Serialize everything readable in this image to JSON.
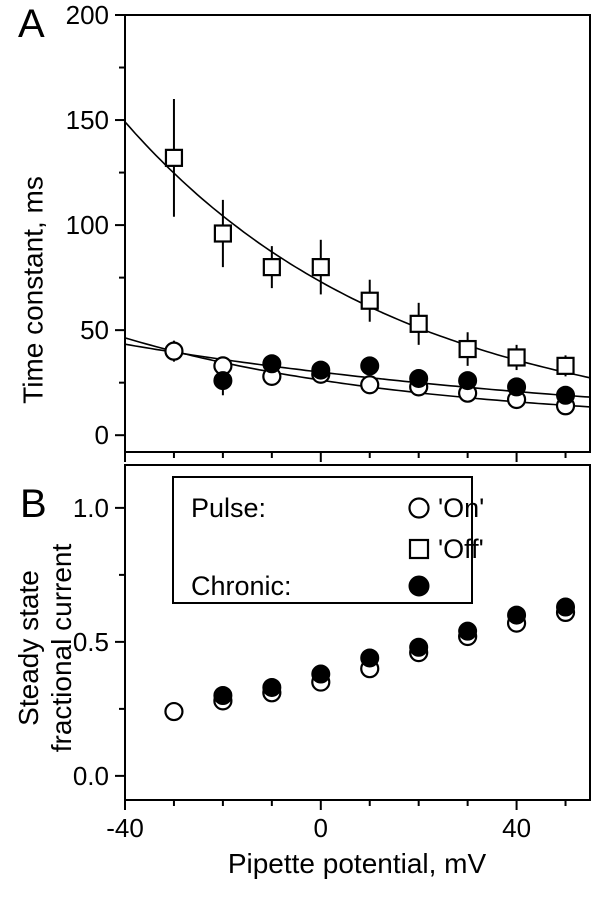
{
  "figure": {
    "panel_a_label": "A",
    "panel_b_label": "B",
    "x_axis_title": "Pipette potential, mV",
    "panel_a_y_title": "Time constant, ms",
    "panel_b_y_title_line1": "Steady state",
    "panel_b_y_title_line2": "fractional current"
  },
  "legend": {
    "pulse_label": "Pulse:",
    "on_label": "'On'",
    "off_label": "'Off'",
    "chronic_label": "Chronic:"
  },
  "chart_data": [
    {
      "type": "scatter",
      "panel": "A",
      "title": "",
      "xlabel": "Pipette potential, mV",
      "ylabel": "Time constant, ms",
      "xlim": [
        -40,
        55
      ],
      "ylim": [
        -8,
        200
      ],
      "x_major_ticks": [
        -40,
        0,
        40
      ],
      "x_tick_labels": [
        "-40",
        "0",
        "40"
      ],
      "x_minor_step": 10,
      "show_x_tick_labels": false,
      "y_major_ticks": [
        0,
        50,
        100,
        150,
        200
      ],
      "y_tick_labels": [
        "0",
        "50",
        "100",
        "150",
        "200"
      ],
      "y_minor_step": 25,
      "grid": false,
      "series": [
        {
          "name": "Pulse Off",
          "marker": "square-open",
          "x": [
            -30,
            -20,
            -10,
            0,
            10,
            20,
            30,
            40,
            50
          ],
          "y": [
            132,
            96,
            80,
            80,
            64,
            53,
            41,
            37,
            33
          ],
          "yerr": [
            28,
            16,
            10,
            13,
            10,
            10,
            8,
            6,
            5
          ],
          "fit": {
            "type": "exponential",
            "a": 73,
            "k": 56,
            "c": 0
          }
        },
        {
          "name": "Pulse On",
          "marker": "circle-open",
          "x": [
            -30,
            -20,
            -10,
            0,
            10,
            20,
            30,
            40,
            50
          ],
          "y": [
            40,
            33,
            28,
            29,
            24,
            23,
            20,
            17,
            14
          ],
          "yerr": [
            5,
            4,
            3,
            3,
            3,
            2,
            2,
            2,
            2
          ],
          "fit": {
            "type": "exponential",
            "a": 21.2,
            "k": 60,
            "c": 5
          }
        },
        {
          "name": "Chronic",
          "marker": "circle-filled",
          "x": [
            -20,
            -10,
            0,
            10,
            20,
            30,
            40,
            50
          ],
          "y": [
            26,
            34,
            31,
            33,
            27,
            26,
            23,
            19
          ],
          "yerr": [
            7,
            3,
            2,
            3,
            2,
            2,
            2,
            2
          ],
          "fit": {
            "type": "exponential",
            "a": 30,
            "k": 109,
            "c": 0
          }
        }
      ]
    },
    {
      "type": "scatter",
      "panel": "B",
      "title": "",
      "xlabel": "Pipette potential, mV",
      "ylabel": "Steady state fractional current",
      "xlim": [
        -40,
        55
      ],
      "ylim": [
        -0.09,
        1.16
      ],
      "x_major_ticks": [
        -40,
        0,
        40
      ],
      "x_tick_labels": [
        "-40",
        "0",
        "40"
      ],
      "x_minor_step": 10,
      "show_x_tick_labels": true,
      "y_major_ticks": [
        0,
        0.5,
        1
      ],
      "y_tick_labels": [
        "0.0",
        "0.5",
        "1.0"
      ],
      "y_minor_step": 0.25,
      "grid": false,
      "series": [
        {
          "name": "Pulse On",
          "marker": "circle-open",
          "x": [
            -30,
            -20,
            -10,
            0,
            10,
            20,
            30,
            40,
            50
          ],
          "y": [
            0.24,
            0.28,
            0.31,
            0.35,
            0.4,
            0.46,
            0.52,
            0.57,
            0.61
          ],
          "yerr": [],
          "fit": null
        },
        {
          "name": "Chronic",
          "marker": "circle-filled",
          "x": [
            -20,
            -10,
            0,
            10,
            20,
            30,
            40,
            50
          ],
          "y": [
            0.3,
            0.33,
            0.38,
            0.44,
            0.48,
            0.54,
            0.6,
            0.63
          ],
          "yerr": [],
          "fit": null
        }
      ]
    }
  ]
}
